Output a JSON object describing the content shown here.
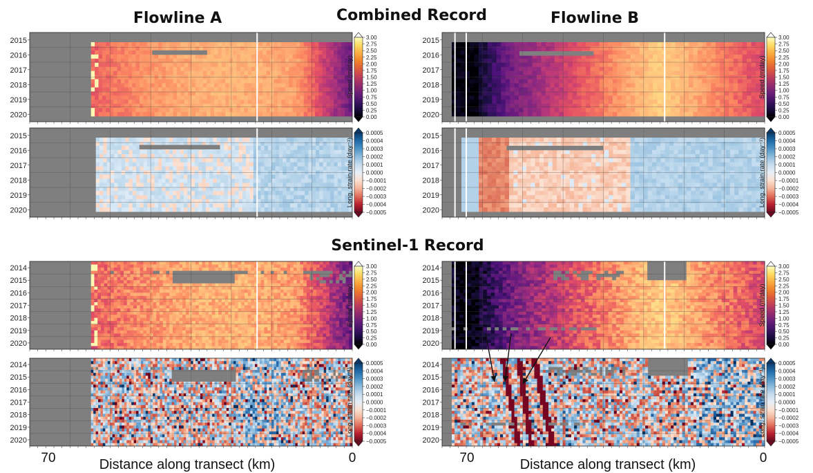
{
  "titles": {
    "flowline_a": "Flowline A",
    "combined": "Combined Record",
    "flowline_b": "Flowline B",
    "sentinel": "Sentinel-1 Record"
  },
  "x_axis": {
    "label": "Distance along transect (km)",
    "tick_left": "70",
    "tick_right": "0"
  },
  "colorbars": {
    "speed": {
      "label": "Speed (m/day)",
      "ticks": [
        "3.00",
        "2.75",
        "2.50",
        "2.25",
        "2.00",
        "1.75",
        "1.50",
        "1.25",
        "1.00",
        "0.75",
        "0.50",
        "0.25",
        "0.00"
      ],
      "stops": [
        "#fcfdbf",
        "#fcdb62",
        "#fbad41",
        "#f1822c",
        "#dd5a3c",
        "#bd3d5a",
        "#952c6d",
        "#6b1e78",
        "#421466",
        "#1b0c42",
        "#000004"
      ]
    },
    "strain": {
      "label": "Long. strain rate (day⁻¹)",
      "ticks": [
        "0.0005",
        "0.0004",
        "0.0003",
        "0.0002",
        "0.0001",
        "0.0000",
        "−0.0001",
        "−0.0002",
        "−0.0003",
        "−0.0004",
        "−0.0005"
      ],
      "stops": [
        "#0b3a6a",
        "#1e6aa8",
        "#4d93c6",
        "#8dbcdc",
        "#c6dcee",
        "#e6eff7",
        "#fbe0d0",
        "#f4b49a",
        "#e06c5a",
        "#b8212f",
        "#6c0a21"
      ]
    }
  },
  "chart_data": [
    {
      "type": "heatmap",
      "title": "Combined Record",
      "flowline": "Flowline A",
      "variable": "Speed (m/day)",
      "years": [
        "2015",
        "2016",
        "2017",
        "2018",
        "2019",
        "2020"
      ],
      "x_range_km": [
        80,
        0
      ],
      "color_range": [
        0,
        3.0
      ]
    },
    {
      "type": "heatmap",
      "title": "Combined Record",
      "flowline": "Flowline B",
      "variable": "Speed (m/day)",
      "years": [
        "2015",
        "2016",
        "2017",
        "2018",
        "2019",
        "2020"
      ],
      "x_range_km": [
        75,
        0
      ],
      "color_range": [
        0,
        3.0
      ]
    },
    {
      "type": "heatmap",
      "title": "Combined Record",
      "flowline": "Flowline A",
      "variable": "Long. strain rate (day⁻¹)",
      "years": [
        "2015",
        "2016",
        "2017",
        "2018",
        "2019",
        "2020"
      ],
      "x_range_km": [
        80,
        0
      ],
      "color_range": [
        -0.0005,
        0.0005
      ]
    },
    {
      "type": "heatmap",
      "title": "Combined Record",
      "flowline": "Flowline B",
      "variable": "Long. strain rate (day⁻¹)",
      "years": [
        "2015",
        "2016",
        "2017",
        "2018",
        "2019",
        "2020"
      ],
      "x_range_km": [
        75,
        0
      ],
      "color_range": [
        -0.0005,
        0.0005
      ]
    },
    {
      "type": "heatmap",
      "title": "Sentinel-1 Record",
      "flowline": "Flowline A",
      "variable": "Speed (m/day)",
      "years": [
        "2014",
        "2015",
        "2016",
        "2017",
        "2018",
        "2019",
        "2020"
      ],
      "x_range_km": [
        80,
        0
      ],
      "color_range": [
        0,
        3.0
      ]
    },
    {
      "type": "heatmap",
      "title": "Sentinel-1 Record",
      "flowline": "Flowline B",
      "variable": "Speed (m/day)",
      "years": [
        "2014",
        "2015",
        "2016",
        "2017",
        "2018",
        "2019",
        "2020"
      ],
      "x_range_km": [
        75,
        0
      ],
      "color_range": [
        0,
        3.0
      ]
    },
    {
      "type": "heatmap",
      "title": "Sentinel-1 Record",
      "flowline": "Flowline A",
      "variable": "Long. strain rate (day⁻¹)",
      "years": [
        "2014",
        "2015",
        "2016",
        "2017",
        "2018",
        "2019",
        "2020"
      ],
      "x_range_km": [
        80,
        0
      ],
      "color_range": [
        -0.0005,
        0.0005
      ]
    },
    {
      "type": "heatmap",
      "title": "Sentinel-1 Record",
      "flowline": "Flowline B",
      "variable": "Long. strain rate (day⁻¹)",
      "years": [
        "2014",
        "2015",
        "2016",
        "2017",
        "2018",
        "2019",
        "2020"
      ],
      "x_range_km": [
        75,
        0
      ],
      "color_range": [
        -0.0005,
        0.0005
      ]
    }
  ]
}
